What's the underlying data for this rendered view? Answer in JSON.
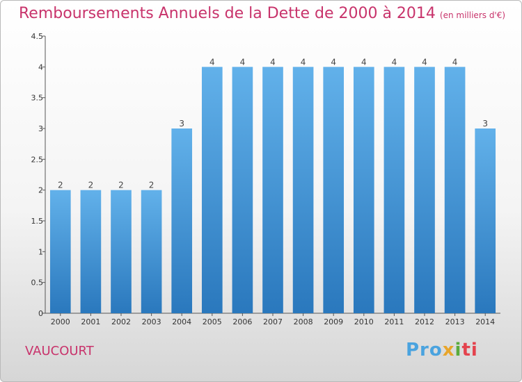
{
  "header": {
    "title": "Remboursements Annuels de la Dette de 2000 à 2014",
    "unit": "(en milliers d'€)"
  },
  "footer": {
    "commune": "VAUCOURT",
    "logo": [
      "Pro",
      "x",
      "i",
      "ti"
    ]
  },
  "colors": {
    "accent": "#c8336b",
    "bar_top": "#62b1ea",
    "bar_bottom": "#2a78bd"
  },
  "chart_data": {
    "type": "bar",
    "title": "Remboursements Annuels de la Dette de 2000 à 2014",
    "xlabel": "",
    "ylabel": "",
    "categories": [
      "2000",
      "2001",
      "2002",
      "2003",
      "2004",
      "2005",
      "2006",
      "2007",
      "2008",
      "2009",
      "2010",
      "2011",
      "2012",
      "2013",
      "2014"
    ],
    "values": [
      2,
      2,
      2,
      2,
      3,
      4,
      4,
      4,
      4,
      4,
      4,
      4,
      4,
      4,
      3
    ],
    "data_labels": [
      "2",
      "2",
      "2",
      "2",
      "3",
      "4",
      "4",
      "4",
      "4",
      "4",
      "4",
      "4",
      "4",
      "4",
      "3"
    ],
    "ylim": [
      0,
      4.5
    ],
    "yticks": [
      0,
      0.5,
      1,
      1.5,
      2,
      2.5,
      3,
      3.5,
      4,
      4.5
    ],
    "ytick_labels": [
      "0",
      "0.5",
      "1",
      "1.5",
      "2",
      "2.5",
      "3",
      "3.5",
      "4",
      "4.5"
    ],
    "grid": false,
    "legend": "none"
  }
}
